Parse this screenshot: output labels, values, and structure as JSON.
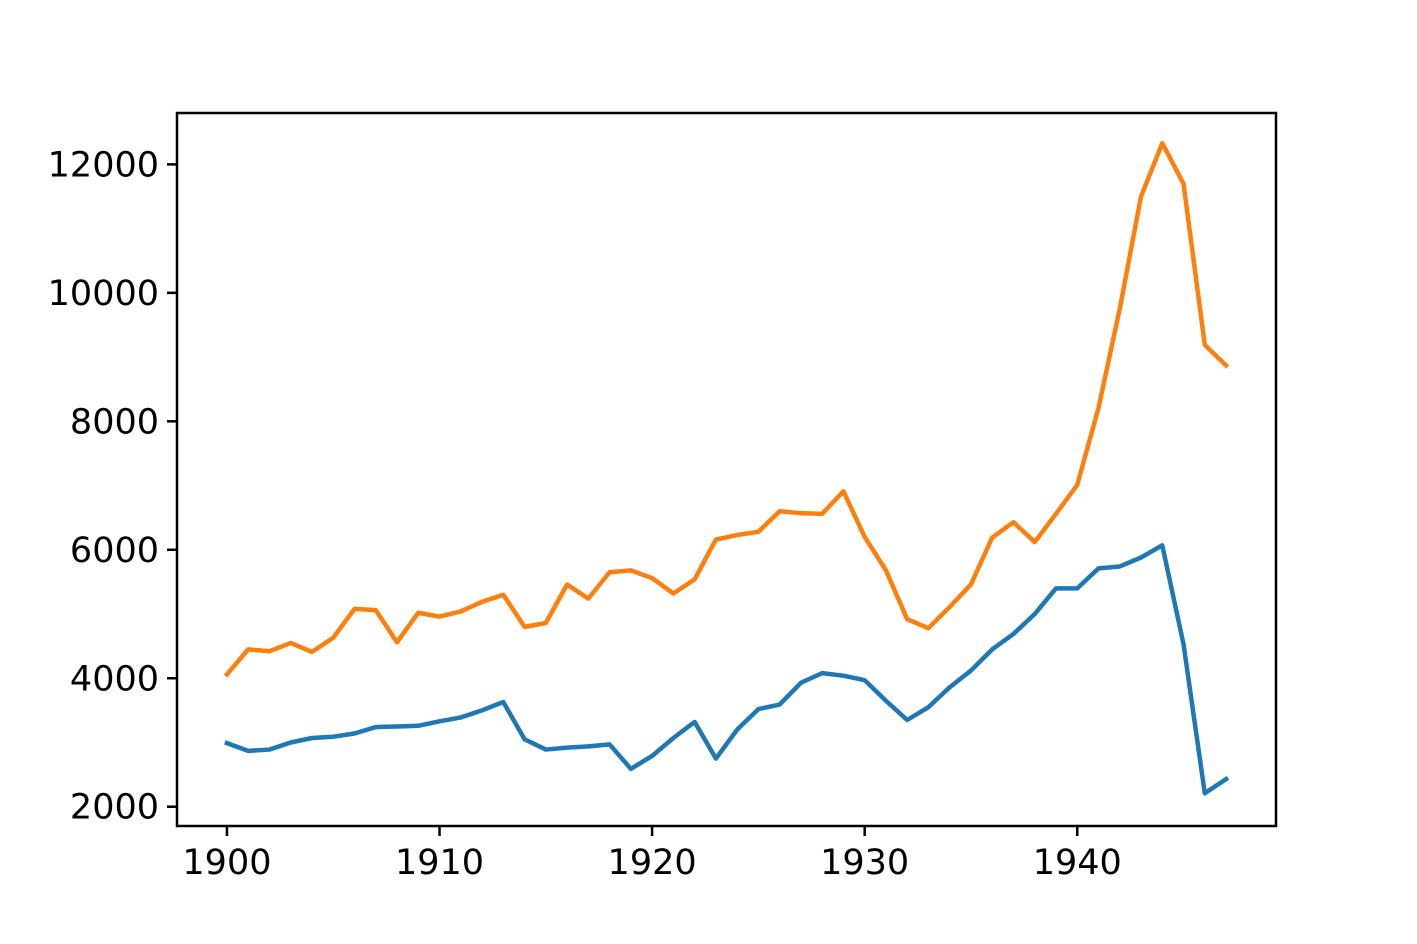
{
  "chart_data": {
    "type": "line",
    "title": "",
    "xlabel": "",
    "ylabel": "",
    "xlim": [
      1897.65,
      1949.35
    ],
    "ylim": [
      1700,
      12800
    ],
    "grid": false,
    "x_ticks": [
      1900,
      1910,
      1920,
      1930,
      1940
    ],
    "x_tick_labels": [
      "1900",
      "1910",
      "1920",
      "1930",
      "1940"
    ],
    "y_ticks": [
      2000,
      4000,
      6000,
      8000,
      10000,
      12000
    ],
    "y_tick_labels": [
      "2000",
      "4000",
      "6000",
      "8000",
      "10000",
      "12000"
    ],
    "x": [
      1900,
      1901,
      1902,
      1903,
      1904,
      1905,
      1906,
      1907,
      1908,
      1909,
      1910,
      1911,
      1912,
      1913,
      1914,
      1915,
      1916,
      1917,
      1918,
      1919,
      1920,
      1921,
      1922,
      1923,
      1924,
      1925,
      1926,
      1927,
      1928,
      1929,
      1930,
      1931,
      1932,
      1933,
      1934,
      1935,
      1936,
      1937,
      1938,
      1939,
      1940,
      1941,
      1942,
      1943,
      1944,
      1945,
      1946,
      1947
    ],
    "series": [
      {
        "color": "#1f77b4",
        "values": [
          2990,
          2870,
          2890,
          3000,
          3070,
          3090,
          3140,
          3240,
          3250,
          3260,
          3330,
          3390,
          3500,
          3630,
          3050,
          2890,
          2920,
          2940,
          2970,
          2590,
          2790,
          3070,
          3320,
          2750,
          3200,
          3520,
          3590,
          3930,
          4080,
          4040,
          3970,
          3650,
          3350,
          3550,
          3860,
          4120,
          4450,
          4690,
          5000,
          5400,
          5400,
          5710,
          5740,
          5880,
          6070,
          4530,
          2210,
          2430
        ]
      },
      {
        "color": "#ff7f0e",
        "values": [
          4060,
          4450,
          4420,
          4550,
          4410,
          4630,
          5080,
          5060,
          4560,
          5020,
          4960,
          5040,
          5190,
          5300,
          4800,
          4860,
          5460,
          5240,
          5650,
          5680,
          5560,
          5320,
          5540,
          6160,
          6230,
          6280,
          6600,
          6570,
          6560,
          6910,
          6200,
          5680,
          4920,
          4780,
          5110,
          5460,
          6190,
          6430,
          6120,
          6560,
          7010,
          8210,
          9750,
          11500,
          12330,
          11700,
          9190,
          8870
        ]
      }
    ]
  }
}
